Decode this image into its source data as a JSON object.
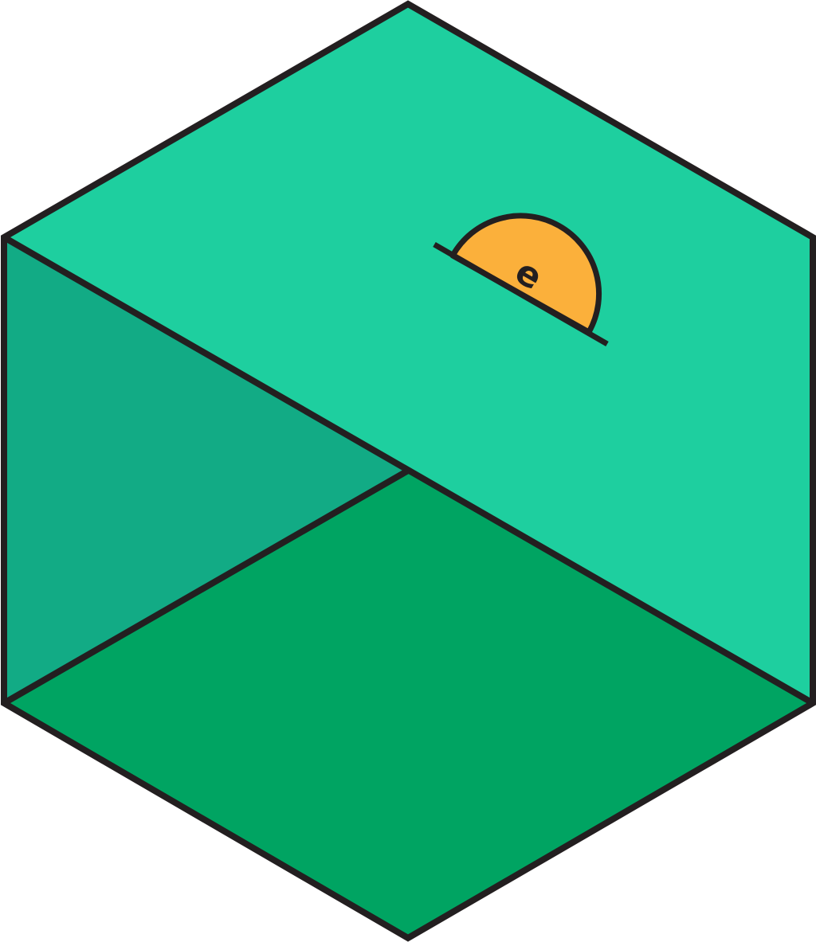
{
  "logo": {
    "shape": "hexagon",
    "faces": {
      "top": {
        "name": "top-face",
        "color": "#1ecf9f"
      },
      "left": {
        "name": "left-face",
        "color": "#12ab85"
      },
      "bottom": {
        "name": "bottom-face",
        "color": "#00a462"
      }
    },
    "outline_color": "#231f20",
    "emblem": {
      "icon": "half-circle-icon",
      "color": "#fbb03b",
      "glyph": "ә"
    }
  }
}
